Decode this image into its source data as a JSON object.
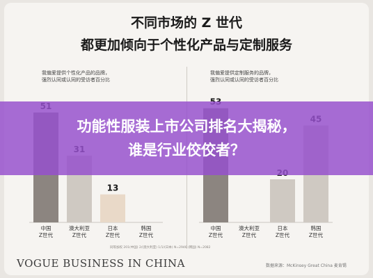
{
  "header": {
    "line1": "不同市场的 Z 世代",
    "line2": "都更加倾向于个性化产品与定制服务"
  },
  "chart_data": [
    {
      "type": "bar",
      "title_lines": [
        "我偏爱提供个性化产品的品牌，",
        "强烈认同或认同的受访者百分比"
      ],
      "categories": [
        [
          "中国",
          "Z世代"
        ],
        [
          "澳大利亚",
          "Z世代"
        ],
        [
          "日本",
          "Z世代"
        ],
        [
          "韩国",
          "Z世代"
        ]
      ],
      "values": [
        51,
        31,
        13,
        0
      ],
      "hidden_label_index": 3,
      "colors": [
        "#8c8580",
        "#cfc9c2",
        "#e9d9c8",
        "#cfc9c2"
      ],
      "ylim": [
        0,
        60
      ]
    },
    {
      "type": "bar",
      "title_lines": [
        "我偏爱提供定制服务的品牌，",
        "强烈认同或认同的受访者百分比"
      ],
      "categories": [
        [
          "中国",
          "Z世代"
        ],
        [
          "澳大利亚",
          "Z世代"
        ],
        [
          "日本",
          "Z世代"
        ],
        [
          "韩国",
          "Z世代"
        ]
      ],
      "values": [
        53,
        0,
        20,
        45
      ],
      "hidden_label_index": 1,
      "colors": [
        "#8c8580",
        "#cfc9c2",
        "#cfc9c2",
        "#cfc9c2"
      ],
      "ylim": [
        0,
        60
      ]
    }
  ],
  "footnote": "同等加权 201(中国) 2/(澳大利亚) 1/1/(日本) N=2946 (韩国) N=2082",
  "logo": "VOGUE BUSINESS IN CHINA",
  "source": "数据来源：McKinsey Great China 麦肯锡",
  "overlay": {
    "line1": "功能性服装上市公司排名大揭秘，",
    "line2": "谁是行业佼佼者？"
  },
  "colors": {
    "overlay": "#9650cd",
    "bar_dark": "#8c8580",
    "bar_light": "#cfc9c2"
  }
}
